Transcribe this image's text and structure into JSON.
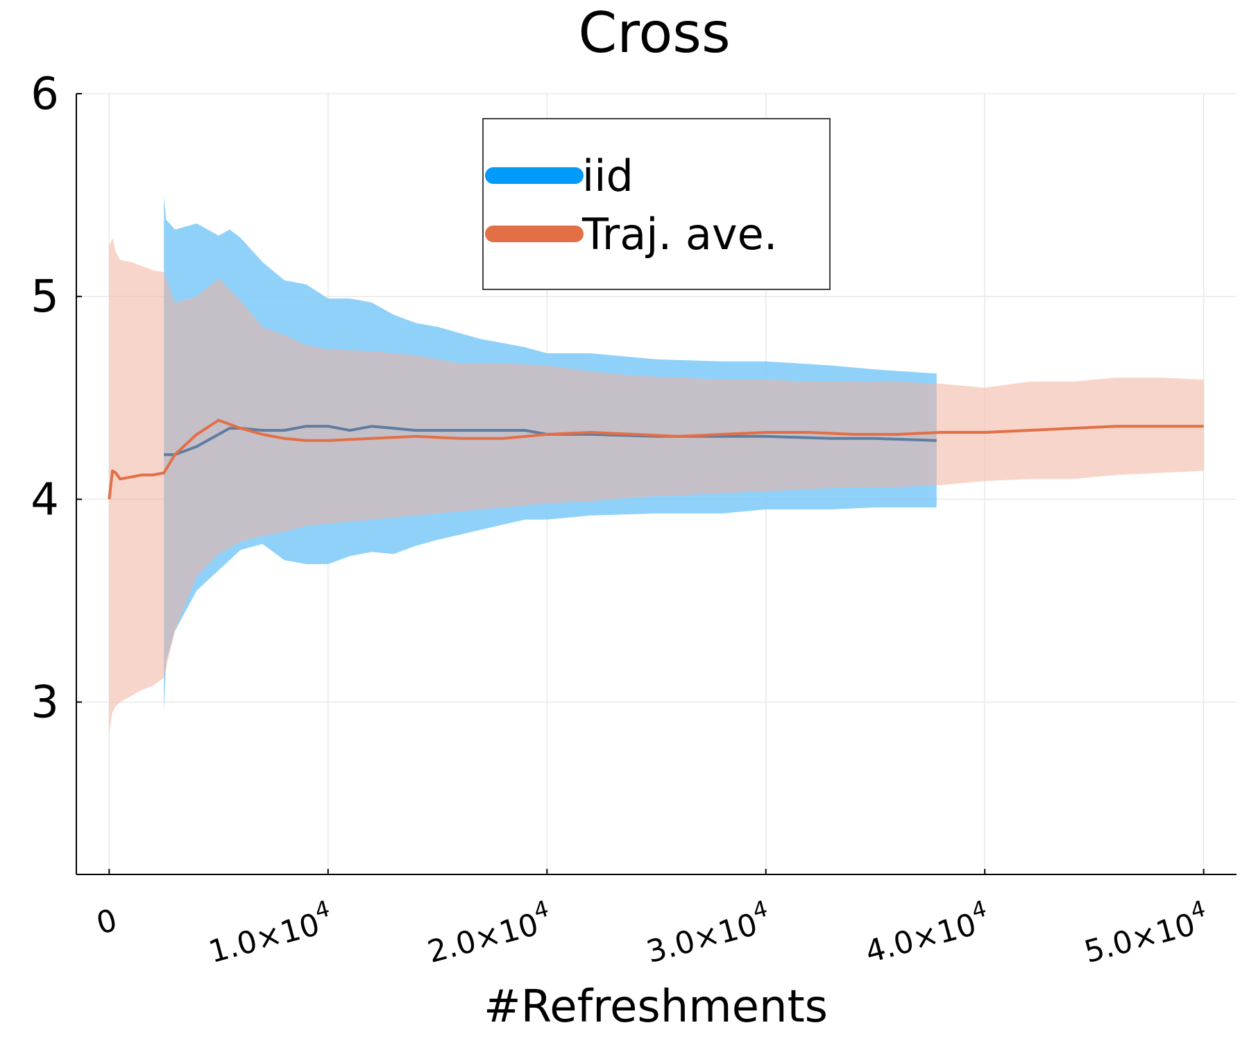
{
  "chart_data": {
    "type": "line",
    "title": "Cross",
    "xlabel": "#Refreshments",
    "ylabel": "",
    "xlim": [
      -1500,
      51500
    ],
    "ylim": [
      2.15,
      6.0
    ],
    "grid": true,
    "legend": "top-center",
    "y_ticks": [
      {
        "value": 3,
        "label": "3"
      },
      {
        "value": 4,
        "label": "4"
      },
      {
        "value": 5,
        "label": "5"
      },
      {
        "value": 6,
        "label": "6"
      }
    ],
    "x_ticks": [
      {
        "value": 0,
        "label": "0",
        "mant": "",
        "exp": ""
      },
      {
        "value": 10000,
        "label": "1.0×10^4",
        "mant": "1.0×10",
        "exp": "4"
      },
      {
        "value": 20000,
        "label": "2.0×10^4",
        "mant": "2.0×10",
        "exp": "4"
      },
      {
        "value": 30000,
        "label": "3.0×10^4",
        "mant": "3.0×10",
        "exp": "4"
      },
      {
        "value": 40000,
        "label": "4.0×10^4",
        "mant": "4.0×10",
        "exp": "4"
      },
      {
        "value": 50000,
        "label": "5.0×10^4",
        "mant": "5.0×10",
        "exp": "4"
      }
    ],
    "series": [
      {
        "name": "iid",
        "color": "#009AFA",
        "band_color": "#7CC9F9",
        "x": [
          2500,
          2600,
          3000,
          4000,
          5000,
          5500,
          6000,
          7000,
          8000,
          9000,
          10000,
          11000,
          12000,
          13000,
          14000,
          15000,
          17000,
          19000,
          20000,
          22000,
          25000,
          28000,
          30000,
          33000,
          35000,
          37800
        ],
        "mean": [
          4.22,
          4.22,
          4.22,
          4.26,
          4.32,
          4.35,
          4.35,
          4.34,
          4.34,
          4.36,
          4.36,
          4.34,
          4.36,
          4.35,
          4.34,
          4.34,
          4.34,
          4.34,
          4.32,
          4.32,
          4.31,
          4.31,
          4.31,
          4.3,
          4.3,
          4.29
        ],
        "upper": [
          5.5,
          5.38,
          5.33,
          5.36,
          5.3,
          5.33,
          5.29,
          5.17,
          5.08,
          5.06,
          4.99,
          4.99,
          4.97,
          4.91,
          4.87,
          4.85,
          4.79,
          4.75,
          4.72,
          4.72,
          4.69,
          4.68,
          4.68,
          4.66,
          4.64,
          4.62
        ],
        "lower": [
          2.95,
          3.2,
          3.35,
          3.55,
          3.65,
          3.7,
          3.75,
          3.78,
          3.7,
          3.68,
          3.68,
          3.72,
          3.74,
          3.73,
          3.77,
          3.8,
          3.85,
          3.9,
          3.9,
          3.92,
          3.93,
          3.93,
          3.95,
          3.95,
          3.96,
          3.96
        ]
      },
      {
        "name": "Traj. ave.",
        "color": "#E26F46",
        "band_color": "#F0B29E",
        "x": [
          0,
          150,
          300,
          500,
          1000,
          1500,
          2000,
          2500,
          3000,
          4000,
          5000,
          6000,
          7000,
          8000,
          9000,
          10000,
          12000,
          14000,
          16000,
          18000,
          20000,
          22000,
          24000,
          26000,
          28000,
          30000,
          32000,
          34000,
          36000,
          38000,
          40000,
          42000,
          44000,
          46000,
          48000,
          50000
        ],
        "mean": [
          4.0,
          4.14,
          4.13,
          4.1,
          4.11,
          4.12,
          4.12,
          4.13,
          4.22,
          4.32,
          4.39,
          4.35,
          4.32,
          4.3,
          4.29,
          4.29,
          4.3,
          4.31,
          4.3,
          4.3,
          4.32,
          4.33,
          4.32,
          4.31,
          4.32,
          4.33,
          4.33,
          4.32,
          4.32,
          4.33,
          4.33,
          4.34,
          4.35,
          4.36,
          4.36,
          4.36
        ],
        "upper": [
          5.25,
          5.29,
          5.22,
          5.18,
          5.17,
          5.15,
          5.13,
          5.12,
          4.97,
          5.0,
          5.09,
          4.98,
          4.85,
          4.81,
          4.76,
          4.74,
          4.73,
          4.71,
          4.67,
          4.67,
          4.66,
          4.63,
          4.61,
          4.6,
          4.59,
          4.59,
          4.58,
          4.58,
          4.58,
          4.57,
          4.55,
          4.58,
          4.58,
          4.6,
          4.6,
          4.59
        ],
        "lower": [
          2.85,
          2.95,
          2.98,
          3.0,
          3.03,
          3.06,
          3.08,
          3.12,
          3.35,
          3.62,
          3.73,
          3.79,
          3.82,
          3.84,
          3.87,
          3.88,
          3.9,
          3.92,
          3.94,
          3.96,
          3.98,
          3.99,
          4.01,
          4.02,
          4.03,
          4.04,
          4.05,
          4.06,
          4.06,
          4.07,
          4.09,
          4.1,
          4.1,
          4.12,
          4.13,
          4.14
        ]
      }
    ]
  }
}
